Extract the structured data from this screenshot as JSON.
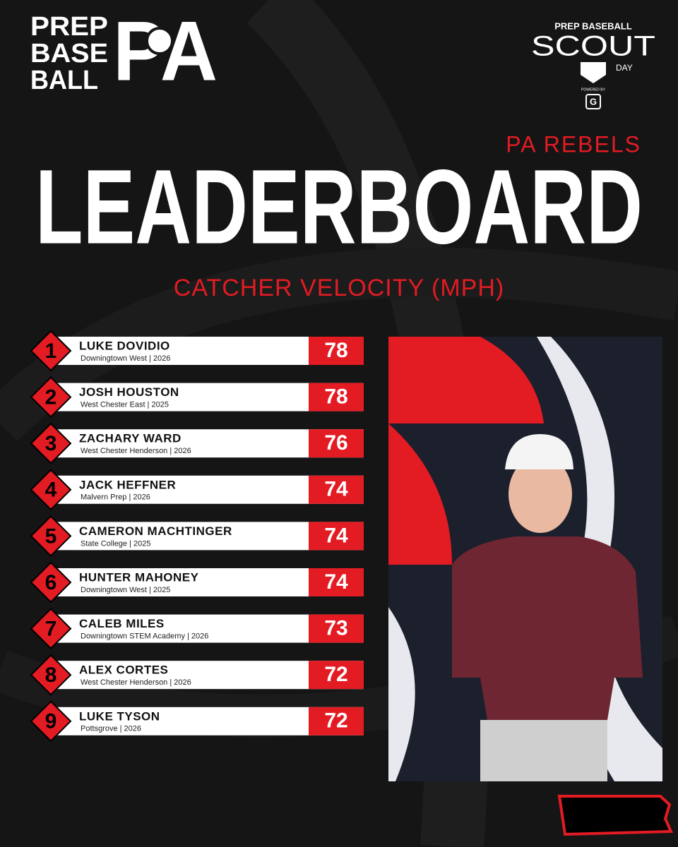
{
  "logo": {
    "lines": [
      "PREP",
      "BASE",
      "BALL"
    ],
    "mark": "PA"
  },
  "badge": {
    "top": "PREP BASEBALL",
    "main": "SCOUT",
    "sub": "DAY",
    "powered": "POWERED BY",
    "sponsor": "G"
  },
  "header": {
    "team": "PA REBELS",
    "title": "LEADERBOARD",
    "subtitle": "CATCHER VELOCITY (MPH)"
  },
  "table": {
    "rows": [
      {
        "rank": 1,
        "name": "LUKE DOVIDIO",
        "detail": "Downingtown West | 2026",
        "value": 78
      },
      {
        "rank": 2,
        "name": "JOSH HOUSTON",
        "detail": "West Chester East | 2025",
        "value": 78
      },
      {
        "rank": 3,
        "name": "ZACHARY WARD",
        "detail": "West Chester Henderson | 2026",
        "value": 76
      },
      {
        "rank": 4,
        "name": "JACK HEFFNER",
        "detail": "Malvern Prep | 2026",
        "value": 74
      },
      {
        "rank": 5,
        "name": "CAMERON MACHTINGER",
        "detail": "State College | 2025",
        "value": 74
      },
      {
        "rank": 6,
        "name": "HUNTER MAHONEY",
        "detail": "Downingtown West | 2025",
        "value": 74
      },
      {
        "rank": 7,
        "name": "CALEB MILES",
        "detail": "Downingtown STEM Academy | 2026",
        "value": 73
      },
      {
        "rank": 8,
        "name": "ALEX CORTES",
        "detail": "West Chester Henderson | 2026",
        "value": 72
      },
      {
        "rank": 9,
        "name": "LUKE TYSON",
        "detail": "Pottsgrove | 2026",
        "value": 72
      }
    ]
  }
}
